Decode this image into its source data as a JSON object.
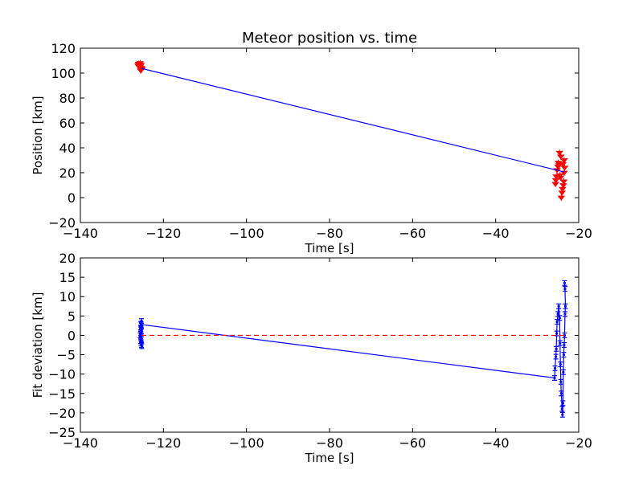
{
  "chart_data": [
    {
      "type": "scatter",
      "title": "Meteor position vs. time",
      "xlabel": "Time [s]",
      "ylabel": "Position [km]",
      "xlim": [
        -140,
        -20
      ],
      "ylim": [
        -20,
        120
      ],
      "xticks": [
        -140,
        -120,
        -100,
        -80,
        -60,
        -40,
        -20
      ],
      "yticks": [
        -20,
        0,
        20,
        40,
        60,
        80,
        100,
        120
      ],
      "grid": false,
      "series": [
        {
          "kind": "points",
          "color": "#ff0000",
          "marker": "tri",
          "x": [
            -126.0,
            -125.9,
            -125.8,
            -125.7,
            -125.6,
            -125.5,
            -125.4,
            -125.3,
            -125.5,
            -125.6,
            -125.8,
            -125.4,
            -125.3,
            -125.2,
            -125.7,
            -126.1,
            -25.6,
            -25.5,
            -25.4,
            -25.2,
            -25.0,
            -24.9,
            -24.7,
            -24.5,
            -24.4,
            -24.2,
            -24.0,
            -23.9,
            -23.7,
            -23.6,
            -23.5,
            -23.4,
            -23.8,
            -24.3,
            -24.6,
            -23.5
          ],
          "y": [
            107.5,
            106.8,
            106.0,
            105.4,
            104.8,
            104.2,
            103.5,
            102.8,
            102.2,
            108.0,
            105.0,
            106.5,
            104.0,
            103.0,
            107.0,
            106.0,
            11.0,
            14.0,
            17.0,
            22.0,
            25.0,
            28.0,
            26.0,
            18.0,
            16.0,
            0.0,
            4.0,
            7.0,
            10.0,
            13.0,
            20.0,
            24.0,
            27.0,
            33.0,
            36.0,
            30.0
          ]
        },
        {
          "kind": "line",
          "color": "#0000ff",
          "x": [
            -125.3,
            -23.4
          ],
          "y": [
            103.8,
            20.5
          ]
        }
      ]
    },
    {
      "type": "scatter",
      "xlabel": "Time [s]",
      "ylabel": "Fit deviation [km]",
      "xlim": [
        -140,
        -20
      ],
      "ylim": [
        -25,
        20
      ],
      "xticks": [
        -140,
        -120,
        -100,
        -80,
        -60,
        -40,
        -20
      ],
      "yticks": [
        -25,
        -20,
        -15,
        -10,
        -5,
        0,
        5,
        10,
        15,
        20
      ],
      "grid": false,
      "series": [
        {
          "kind": "errorbar-line",
          "color": "#0000ff",
          "x": [
            -125.3,
            -125.4,
            -125.3,
            -125.5,
            -125.4,
            -125.3,
            -125.5,
            -125.6,
            -125.4,
            -125.3,
            -125.5,
            -125.4,
            -125.3,
            -125.2,
            -125.4,
            -25.8,
            -25.7,
            -25.5,
            -25.4,
            -25.3,
            -25.2,
            -25.0,
            -24.8,
            -24.6,
            -24.5,
            -24.4,
            -24.3,
            -24.2,
            -24.0,
            -23.9,
            -23.8,
            -23.7,
            -23.6,
            -23.5,
            -23.4,
            -23.3,
            -23.2,
            -23.3,
            -23.4
          ],
          "y": [
            3.7,
            3.0,
            2.5,
            2.0,
            1.5,
            1.0,
            0.5,
            0.0,
            -0.5,
            -1.0,
            -1.5,
            -2.0,
            -2.5,
            -2.8,
            2.8,
            -11.0,
            -8.5,
            -5.5,
            -3.5,
            0.5,
            3.5,
            5.5,
            7.5,
            4.5,
            -2.0,
            -7.5,
            -12.0,
            -15.0,
            -19.0,
            -20.5,
            -17.5,
            -9.5,
            -5.0,
            -2.5,
            0.0,
            5.5,
            7.5,
            12.0,
            13.5
          ],
          "err": 0.6
        },
        {
          "kind": "dashed-line",
          "color": "#ff0000",
          "x": [
            -125.3,
            -23.4
          ],
          "y": [
            0,
            0
          ]
        }
      ]
    }
  ]
}
